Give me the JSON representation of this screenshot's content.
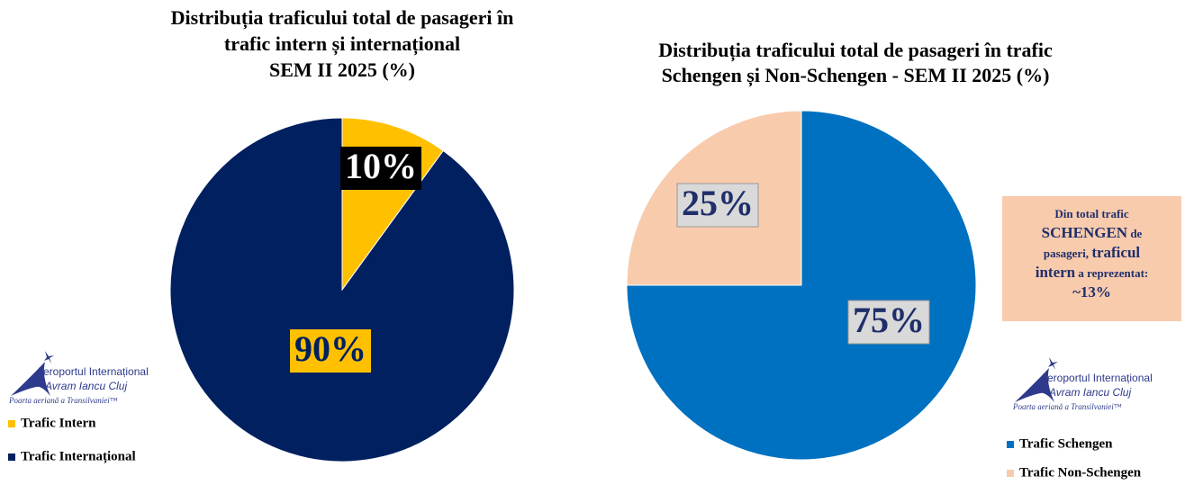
{
  "chart_data": [
    {
      "type": "pie",
      "title": [
        "Distribuția traficului total de pasageri în",
        "trafic intern și internațional",
        "SEM II 2025 (%)"
      ],
      "categories": [
        "Trafic Intern",
        "Trafic Internațional"
      ],
      "values": [
        10,
        90
      ],
      "value_labels": [
        "10%",
        "90%"
      ],
      "colors": [
        "#ffc000",
        "#002060"
      ]
    },
    {
      "type": "pie",
      "title": [
        "Distribuția traficului total de pasageri în trafic",
        "Schengen și Non-Schengen - SEM II 2025 (%)"
      ],
      "categories": [
        "Trafic Schengen",
        "Trafic Non-Schengen"
      ],
      "values": [
        75,
        25
      ],
      "value_labels": [
        "75%",
        "25%"
      ],
      "colors": [
        "#0070c0",
        "#f8cbad"
      ],
      "annotation": [
        "Din total trafic",
        "SCHENGEN",
        "de",
        "pasageri,",
        "traficul",
        "intern",
        "a reprezentat:",
        "~13%"
      ]
    }
  ],
  "logo": {
    "name": "Aeroportul Internațional",
    "city": "Avram Iancu Cluj",
    "motto": "Poarta aeriană a Transilvaniei™"
  }
}
